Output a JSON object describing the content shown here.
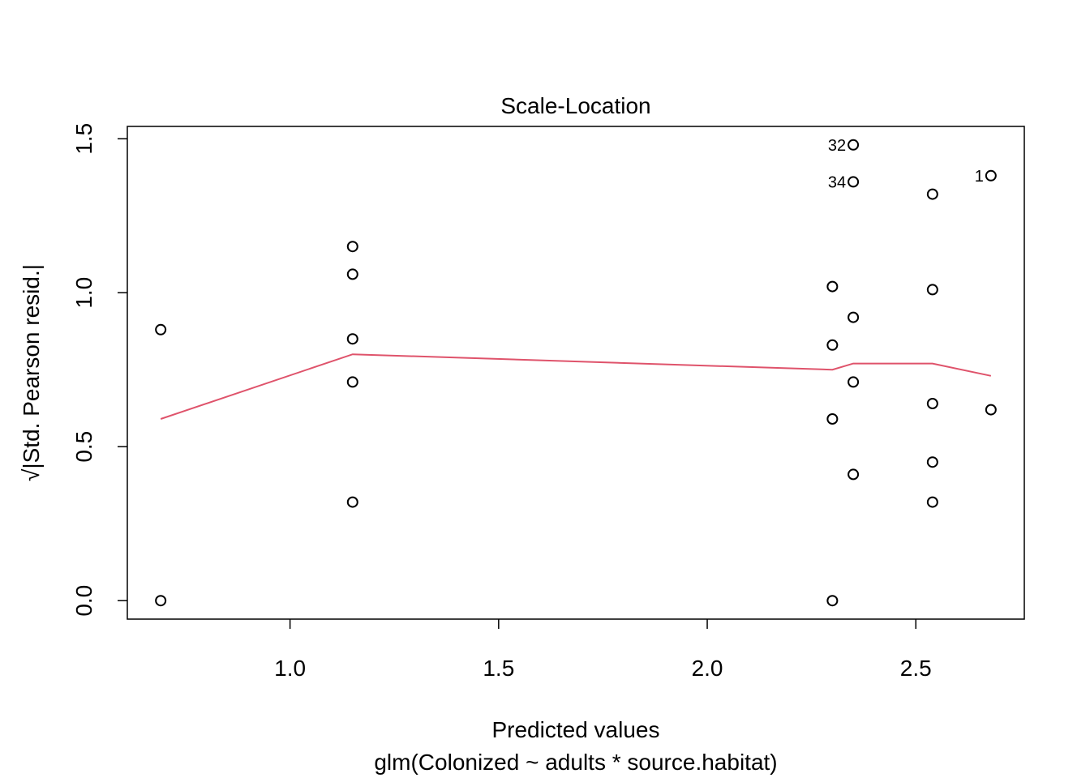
{
  "chart_data": {
    "type": "scatter",
    "title": "Scale-Location",
    "xlabel": "Predicted values",
    "subtitle": "glm(Colonized ~ adults * source.habitat)",
    "ylabel": "√|Std. Pearson resid.|",
    "xlim": [
      0.61,
      2.76
    ],
    "ylim": [
      -0.06,
      1.54
    ],
    "x_ticks": [
      {
        "value": 1.0,
        "label": "1.0"
      },
      {
        "value": 1.5,
        "label": "1.5"
      },
      {
        "value": 2.0,
        "label": "2.0"
      },
      {
        "value": 2.5,
        "label": "2.5"
      }
    ],
    "y_ticks": [
      {
        "value": 0.0,
        "label": "0.0"
      },
      {
        "value": 0.5,
        "label": "0.5"
      },
      {
        "value": 1.0,
        "label": "1.0"
      },
      {
        "value": 1.5,
        "label": "1.5"
      }
    ],
    "points": [
      {
        "x": 0.69,
        "y": 0.88,
        "label": ""
      },
      {
        "x": 0.69,
        "y": 0.0,
        "label": ""
      },
      {
        "x": 1.15,
        "y": 1.15,
        "label": ""
      },
      {
        "x": 1.15,
        "y": 1.06,
        "label": ""
      },
      {
        "x": 1.15,
        "y": 0.85,
        "label": ""
      },
      {
        "x": 1.15,
        "y": 0.71,
        "label": ""
      },
      {
        "x": 1.15,
        "y": 0.32,
        "label": ""
      },
      {
        "x": 2.3,
        "y": 1.02,
        "label": ""
      },
      {
        "x": 2.3,
        "y": 0.83,
        "label": ""
      },
      {
        "x": 2.3,
        "y": 0.59,
        "label": ""
      },
      {
        "x": 2.3,
        "y": 0.0,
        "label": ""
      },
      {
        "x": 2.35,
        "y": 1.48,
        "label": "32"
      },
      {
        "x": 2.35,
        "y": 1.36,
        "label": "34"
      },
      {
        "x": 2.35,
        "y": 0.92,
        "label": ""
      },
      {
        "x": 2.35,
        "y": 0.71,
        "label": ""
      },
      {
        "x": 2.35,
        "y": 0.41,
        "label": ""
      },
      {
        "x": 2.54,
        "y": 1.32,
        "label": ""
      },
      {
        "x": 2.54,
        "y": 1.01,
        "label": ""
      },
      {
        "x": 2.54,
        "y": 0.64,
        "label": ""
      },
      {
        "x": 2.54,
        "y": 0.45,
        "label": ""
      },
      {
        "x": 2.54,
        "y": 0.32,
        "label": ""
      },
      {
        "x": 2.68,
        "y": 1.38,
        "label": "1"
      },
      {
        "x": 2.68,
        "y": 0.62,
        "label": ""
      }
    ],
    "smooth_line": {
      "color": "#DF536B",
      "x": [
        0.69,
        1.15,
        2.3,
        2.35,
        2.54,
        2.68
      ],
      "y": [
        0.59,
        0.8,
        0.75,
        0.77,
        0.77,
        0.73
      ]
    },
    "grid": false,
    "legend": "none"
  }
}
